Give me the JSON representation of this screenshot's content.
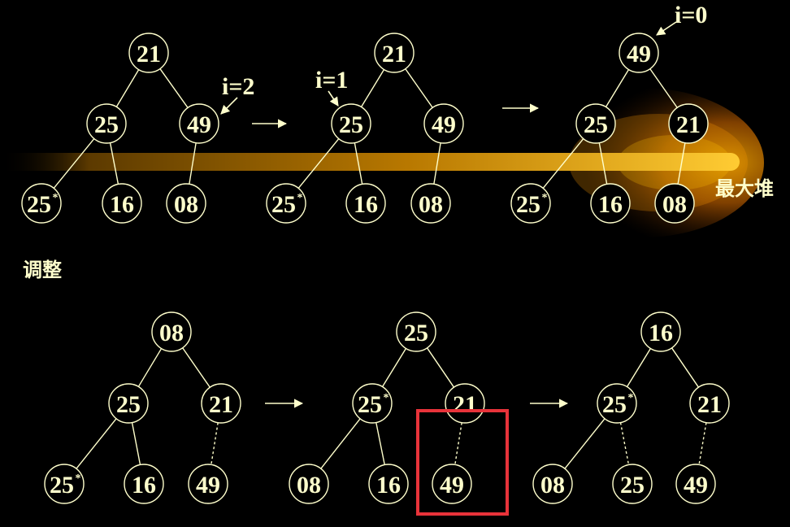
{
  "colors": {
    "background": "#000000",
    "node": "#ffffcc",
    "highlight_box": "#e8333a",
    "glow": "#f5a300"
  },
  "labels": {
    "i2": "i=2",
    "i1": "i=1",
    "i0": "i=0",
    "max_heap": "最大堆",
    "adjust": "调整"
  },
  "trees": [
    {
      "nodes": [
        {
          "value": "21"
        },
        {
          "value": "25"
        },
        {
          "value": "49"
        },
        {
          "value": "25",
          "mark": "*"
        },
        {
          "value": "16"
        },
        {
          "value": "08"
        }
      ],
      "edges": [
        [
          0,
          1,
          "solid"
        ],
        [
          0,
          2,
          "solid"
        ],
        [
          1,
          3,
          "solid"
        ],
        [
          1,
          4,
          "solid"
        ],
        [
          2,
          5,
          "solid"
        ]
      ]
    },
    {
      "nodes": [
        {
          "value": "21"
        },
        {
          "value": "25"
        },
        {
          "value": "49"
        },
        {
          "value": "25",
          "mark": "*"
        },
        {
          "value": "16"
        },
        {
          "value": "08"
        }
      ],
      "edges": [
        [
          0,
          1,
          "solid"
        ],
        [
          0,
          2,
          "solid"
        ],
        [
          1,
          3,
          "solid"
        ],
        [
          1,
          4,
          "solid"
        ],
        [
          2,
          5,
          "solid"
        ]
      ]
    },
    {
      "nodes": [
        {
          "value": "49"
        },
        {
          "value": "25"
        },
        {
          "value": "21"
        },
        {
          "value": "25",
          "mark": "*"
        },
        {
          "value": "16"
        },
        {
          "value": "08"
        }
      ],
      "edges": [
        [
          0,
          1,
          "solid"
        ],
        [
          0,
          2,
          "solid"
        ],
        [
          1,
          3,
          "solid"
        ],
        [
          1,
          4,
          "solid"
        ],
        [
          2,
          5,
          "solid"
        ]
      ]
    },
    {
      "nodes": [
        {
          "value": "08"
        },
        {
          "value": "25"
        },
        {
          "value": "21"
        },
        {
          "value": "25",
          "mark": "*"
        },
        {
          "value": "16"
        },
        {
          "value": "49"
        }
      ],
      "edges": [
        [
          0,
          1,
          "solid"
        ],
        [
          0,
          2,
          "solid"
        ],
        [
          1,
          3,
          "solid"
        ],
        [
          1,
          4,
          "solid"
        ],
        [
          2,
          5,
          "dashed"
        ]
      ]
    },
    {
      "nodes": [
        {
          "value": "25"
        },
        {
          "value": "25",
          "mark": "*"
        },
        {
          "value": "21"
        },
        {
          "value": "08"
        },
        {
          "value": "16"
        },
        {
          "value": "49"
        }
      ],
      "edges": [
        [
          0,
          1,
          "solid"
        ],
        [
          0,
          2,
          "solid"
        ],
        [
          1,
          3,
          "solid"
        ],
        [
          1,
          4,
          "solid"
        ],
        [
          2,
          5,
          "dashed"
        ]
      ]
    },
    {
      "nodes": [
        {
          "value": "16"
        },
        {
          "value": "25",
          "mark": "*"
        },
        {
          "value": "21"
        },
        {
          "value": "08"
        },
        {
          "value": "25"
        },
        {
          "value": "49"
        }
      ],
      "edges": [
        [
          0,
          1,
          "solid"
        ],
        [
          0,
          2,
          "solid"
        ],
        [
          1,
          3,
          "solid"
        ],
        [
          1,
          4,
          "dashed"
        ],
        [
          2,
          5,
          "dashed"
        ]
      ]
    }
  ]
}
